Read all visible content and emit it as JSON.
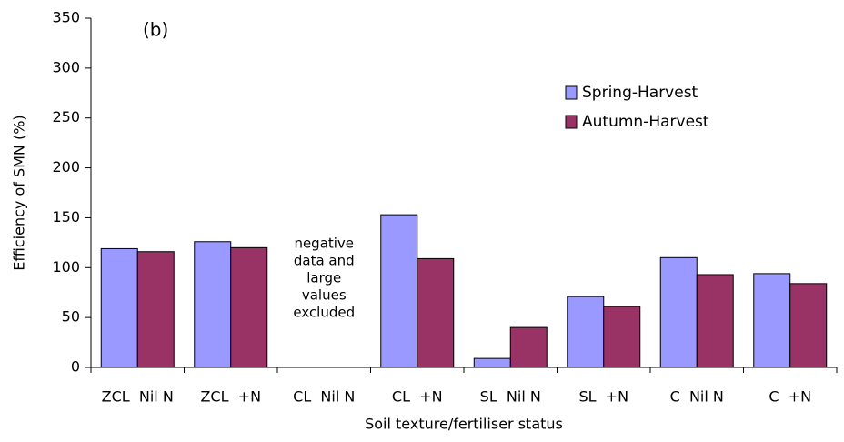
{
  "chart_data": {
    "type": "bar",
    "panel_label": "(b)",
    "x_label": "Soil texture/fertiliser status",
    "y_label": "Efficiency of SMN (%)",
    "categories": [
      "ZCL  Nil N",
      "ZCL  +N",
      "CL  Nil N",
      "CL  +N",
      "SL  Nil N",
      "SL  +N",
      "C  Nil N",
      "C  +N"
    ],
    "series": [
      {
        "name": "Spring-Harvest",
        "color": "#9999ff",
        "values": [
          119,
          126,
          null,
          153,
          9,
          71,
          110,
          94
        ]
      },
      {
        "name": "Autumn-Harvest",
        "color": "#993366",
        "values": [
          116,
          120,
          null,
          109,
          40,
          61,
          93,
          84
        ]
      }
    ],
    "annotation": [
      "negative",
      "data and",
      "large",
      "values",
      "excluded"
    ],
    "ylim": [
      0,
      350
    ],
    "yticks": [
      0,
      50,
      100,
      150,
      200,
      250,
      300,
      350
    ],
    "grid": false
  }
}
